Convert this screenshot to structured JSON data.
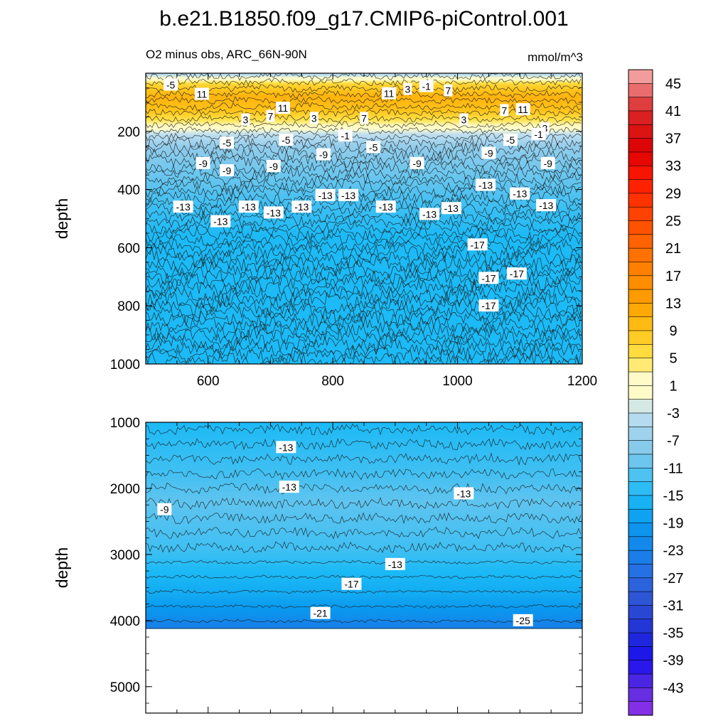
{
  "title": "b.e21.B1850.f09_g17.CMIP6-piControl.001",
  "subtitle_left": "O2 minus obs, ARC_66N-90N",
  "units": "mmol/m^3",
  "colors": {
    "frame": "#000000",
    "contour_line": "#1a1a1a",
    "label_box": "#ffffff"
  },
  "chart_data": [
    {
      "type": "contour",
      "panel": "upper",
      "xlabel": "",
      "ylabel": "depth",
      "xlim": [
        500,
        1200
      ],
      "ylim": [
        1000,
        0
      ],
      "xticks": [
        "600",
        "800",
        "1000",
        "1200"
      ],
      "xtick_values": [
        600,
        800,
        1000,
        1200
      ],
      "yticks": [
        "200",
        "400",
        "600",
        "800",
        "1000"
      ],
      "ytick_values": [
        200,
        400,
        600,
        800,
        1000
      ],
      "bands": [
        {
          "depth": 0,
          "value": -5
        },
        {
          "depth": 40,
          "value": 7
        },
        {
          "depth": 80,
          "value": 11
        },
        {
          "depth": 130,
          "value": 9
        },
        {
          "depth": 175,
          "value": 3
        },
        {
          "depth": 210,
          "value": -3
        },
        {
          "depth": 250,
          "value": -7
        },
        {
          "depth": 310,
          "value": -9
        },
        {
          "depth": 380,
          "value": -11
        },
        {
          "depth": 460,
          "value": -13
        },
        {
          "depth": 560,
          "value": -15
        },
        {
          "depth": 1000,
          "value": -15
        }
      ],
      "contour_labels": [
        {
          "x": 540,
          "depth": 40,
          "label": "-5"
        },
        {
          "x": 590,
          "depth": 72,
          "label": "11"
        },
        {
          "x": 660,
          "depth": 160,
          "label": "3"
        },
        {
          "x": 700,
          "depth": 148,
          "label": "7"
        },
        {
          "x": 720,
          "depth": 120,
          "label": "11"
        },
        {
          "x": 770,
          "depth": 155,
          "label": "3"
        },
        {
          "x": 850,
          "depth": 155,
          "label": "7"
        },
        {
          "x": 890,
          "depth": 70,
          "label": "11"
        },
        {
          "x": 920,
          "depth": 55,
          "label": "3"
        },
        {
          "x": 950,
          "depth": 45,
          "label": "-1"
        },
        {
          "x": 985,
          "depth": 60,
          "label": "7"
        },
        {
          "x": 1010,
          "depth": 160,
          "label": "3"
        },
        {
          "x": 1075,
          "depth": 128,
          "label": "7"
        },
        {
          "x": 1105,
          "depth": 125,
          "label": "11"
        },
        {
          "x": 1140,
          "depth": 190,
          "label": "3"
        },
        {
          "x": 1130,
          "depth": 210,
          "label": "-1"
        },
        {
          "x": 1085,
          "depth": 230,
          "label": "-5"
        },
        {
          "x": 630,
          "depth": 240,
          "label": "-5"
        },
        {
          "x": 725,
          "depth": 230,
          "label": "-5"
        },
        {
          "x": 820,
          "depth": 215,
          "label": "-1"
        },
        {
          "x": 865,
          "depth": 255,
          "label": "-5"
        },
        {
          "x": 592,
          "depth": 310,
          "label": "-9"
        },
        {
          "x": 630,
          "depth": 335,
          "label": "-9"
        },
        {
          "x": 705,
          "depth": 320,
          "label": "-9"
        },
        {
          "x": 785,
          "depth": 280,
          "label": "-9"
        },
        {
          "x": 935,
          "depth": 310,
          "label": "-9"
        },
        {
          "x": 1050,
          "depth": 275,
          "label": "-9"
        },
        {
          "x": 1145,
          "depth": 310,
          "label": "-9"
        },
        {
          "x": 560,
          "depth": 460,
          "label": "-13"
        },
        {
          "x": 620,
          "depth": 510,
          "label": "-13"
        },
        {
          "x": 665,
          "depth": 460,
          "label": "-13"
        },
        {
          "x": 705,
          "depth": 480,
          "label": "-13"
        },
        {
          "x": 750,
          "depth": 460,
          "label": "-13"
        },
        {
          "x": 788,
          "depth": 420,
          "label": "-13"
        },
        {
          "x": 825,
          "depth": 420,
          "label": "-13"
        },
        {
          "x": 885,
          "depth": 460,
          "label": "-13"
        },
        {
          "x": 955,
          "depth": 485,
          "label": "-13"
        },
        {
          "x": 990,
          "depth": 465,
          "label": "-13"
        },
        {
          "x": 1045,
          "depth": 385,
          "label": "-13"
        },
        {
          "x": 1100,
          "depth": 415,
          "label": "-13"
        },
        {
          "x": 1142,
          "depth": 455,
          "label": "-13"
        },
        {
          "x": 1032,
          "depth": 590,
          "label": "-17"
        },
        {
          "x": 1050,
          "depth": 705,
          "label": "-17"
        },
        {
          "x": 1095,
          "depth": 690,
          "label": "-17"
        },
        {
          "x": 1050,
          "depth": 800,
          "label": "-17"
        }
      ]
    },
    {
      "type": "contour",
      "panel": "lower",
      "xlabel": "",
      "ylabel": "depth",
      "xlim": [
        500,
        1200
      ],
      "ylim": [
        5400,
        1000
      ],
      "yticks": [
        "1000",
        "2000",
        "3000",
        "4000",
        "5000"
      ],
      "ytick_values": [
        1000,
        2000,
        3000,
        4000,
        5000
      ],
      "bottom_depth": 4120,
      "bands": [
        {
          "depth": 1000,
          "value": -15
        },
        {
          "depth": 1700,
          "value": -13
        },
        {
          "depth": 2200,
          "value": -11
        },
        {
          "depth": 2950,
          "value": -13
        },
        {
          "depth": 3250,
          "value": -15
        },
        {
          "depth": 3600,
          "value": -17
        },
        {
          "depth": 3800,
          "value": -19
        },
        {
          "depth": 3950,
          "value": -21
        },
        {
          "depth": 4050,
          "value": -23
        }
      ],
      "contour_labels": [
        {
          "x": 725,
          "depth": 1380,
          "label": "-13"
        },
        {
          "x": 730,
          "depth": 1980,
          "label": "-13"
        },
        {
          "x": 1010,
          "depth": 2080,
          "label": "-13"
        },
        {
          "x": 530,
          "depth": 2320,
          "label": "-9"
        },
        {
          "x": 900,
          "depth": 3150,
          "label": "-13"
        },
        {
          "x": 830,
          "depth": 3450,
          "label": "-17"
        },
        {
          "x": 780,
          "depth": 3890,
          "label": "-21"
        },
        {
          "x": 1105,
          "depth": 4000,
          "label": "-25"
        }
      ]
    },
    {
      "type": "colorbar",
      "levels": [
        "45",
        "41",
        "37",
        "33",
        "29",
        "25",
        "21",
        "17",
        "13",
        "9",
        "5",
        "1",
        "-3",
        "-7",
        "-11",
        "-15",
        "-19",
        "-23",
        "-27",
        "-31",
        "-35",
        "-39",
        "-43"
      ],
      "level_values": [
        45,
        41,
        37,
        33,
        29,
        25,
        21,
        17,
        13,
        9,
        5,
        1,
        -3,
        -7,
        -11,
        -15,
        -19,
        -23,
        -27,
        -31,
        -35,
        -39,
        -43
      ],
      "range": [
        -47,
        47
      ],
      "step": 2,
      "anchor_colors": [
        {
          "value": 47,
          "color": "#f8b3b3"
        },
        {
          "value": 41,
          "color": "#d92626"
        },
        {
          "value": 35,
          "color": "#dd0000"
        },
        {
          "value": 31,
          "color": "#ff1a00"
        },
        {
          "value": 25,
          "color": "#ff4a00"
        },
        {
          "value": 19,
          "color": "#ff7a00"
        },
        {
          "value": 13,
          "color": "#ffa000"
        },
        {
          "value": 9,
          "color": "#ffc41a"
        },
        {
          "value": 5,
          "color": "#ffe24a"
        },
        {
          "value": 2,
          "color": "#fffbc8"
        },
        {
          "value": 0,
          "color": "#fffbc8"
        },
        {
          "value": -3,
          "color": "#bfe0f0"
        },
        {
          "value": -7,
          "color": "#94cdeb"
        },
        {
          "value": -11,
          "color": "#5fc4ef"
        },
        {
          "value": -15,
          "color": "#1cbaf6"
        },
        {
          "value": -19,
          "color": "#0a9aef"
        },
        {
          "value": -23,
          "color": "#1683ea"
        },
        {
          "value": -27,
          "color": "#2a6adf"
        },
        {
          "value": -31,
          "color": "#2e4fd2"
        },
        {
          "value": -35,
          "color": "#1f2fd8"
        },
        {
          "value": -39,
          "color": "#1a10ee"
        },
        {
          "value": -43,
          "color": "#5a2de0"
        },
        {
          "value": -47,
          "color": "#8f2fe6"
        }
      ]
    }
  ]
}
